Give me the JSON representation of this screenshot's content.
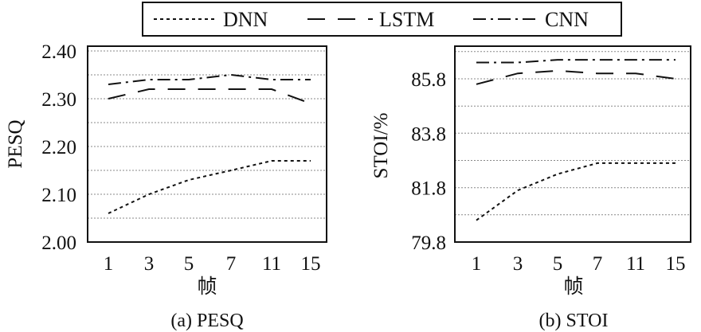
{
  "legend": {
    "entries": [
      {
        "name": "DNN",
        "dash": "dotted"
      },
      {
        "name": "LSTM",
        "dash": "dashed"
      },
      {
        "name": "CNN",
        "dash": "dashdot"
      }
    ]
  },
  "chart_data": [
    {
      "type": "line",
      "caption": "(a) PESQ",
      "xlabel": "帧",
      "ylabel": "PESQ",
      "categories": [
        "1",
        "3",
        "5",
        "7",
        "11",
        "15"
      ],
      "ylim": [
        2.0,
        2.41
      ],
      "yticks": [
        "2.00",
        "2.10",
        "2.20",
        "2.30",
        "2.40"
      ],
      "ytick_values": [
        2.0,
        2.1,
        2.2,
        2.3,
        2.4
      ],
      "grid_values": [
        2.05,
        2.1,
        2.15,
        2.2,
        2.25,
        2.3,
        2.35,
        2.4
      ],
      "grid": true,
      "series": [
        {
          "name": "DNN",
          "values": [
            2.06,
            2.1,
            2.13,
            2.15,
            2.17,
            2.17
          ]
        },
        {
          "name": "LSTM",
          "values": [
            2.3,
            2.32,
            2.32,
            2.32,
            2.32,
            2.29
          ]
        },
        {
          "name": "CNN",
          "values": [
            2.33,
            2.34,
            2.34,
            2.35,
            2.34,
            2.34
          ]
        }
      ]
    },
    {
      "type": "line",
      "caption": "(b) STOI",
      "xlabel": "帧",
      "ylabel": "STOI/%",
      "categories": [
        "1",
        "3",
        "5",
        "7",
        "11",
        "15"
      ],
      "ylim": [
        79.8,
        87.0
      ],
      "yticks": [
        "79.8",
        "81.8",
        "83.8",
        "85.8"
      ],
      "ytick_values": [
        79.8,
        81.8,
        83.8,
        85.8
      ],
      "grid_values": [
        80.8,
        81.8,
        82.8,
        83.8,
        84.8,
        85.8,
        86.8
      ],
      "grid": true,
      "series": [
        {
          "name": "DNN",
          "values": [
            80.6,
            81.7,
            82.3,
            82.7,
            82.7,
            82.7
          ]
        },
        {
          "name": "LSTM",
          "values": [
            85.6,
            86.0,
            86.1,
            86.0,
            86.0,
            85.8
          ]
        },
        {
          "name": "CNN",
          "values": [
            86.4,
            86.4,
            86.5,
            86.5,
            86.5,
            86.5
          ]
        }
      ]
    }
  ]
}
